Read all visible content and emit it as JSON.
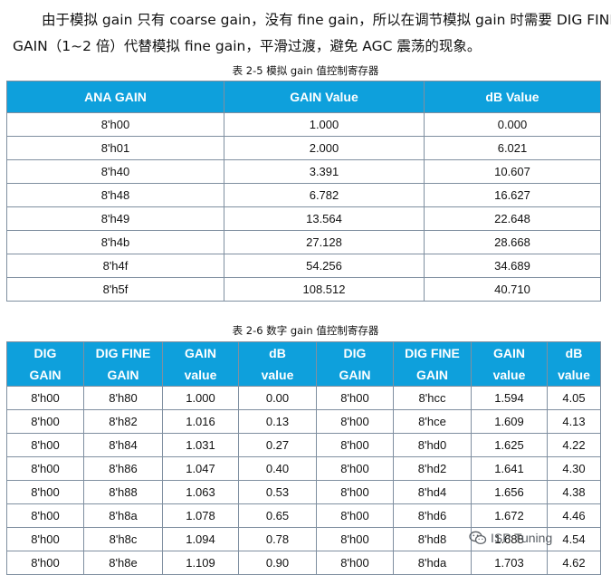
{
  "intro": {
    "line1": "由于模拟 gain 只有 coarse gain，没有 fine gain，所以在调节模拟 gain 时需要 DIG FINE",
    "line2": "GAIN（1~2 倍）代替模拟 fine gain，平滑过渡，避免 AGC 震荡的现象。"
  },
  "table1": {
    "caption": "表 2-5 模拟 gain 值控制寄存器",
    "headers": [
      "ANA GAIN",
      "GAIN Value",
      "dB Value"
    ],
    "rows": [
      [
        "8'h00",
        "1.000",
        "0.000"
      ],
      [
        "8'h01",
        "2.000",
        "6.021"
      ],
      [
        "8'h40",
        "3.391",
        "10.607"
      ],
      [
        "8'h48",
        "6.782",
        "16.627"
      ],
      [
        "8'h49",
        "13.564",
        "22.648"
      ],
      [
        "8'h4b",
        "27.128",
        "28.668"
      ],
      [
        "8'h4f",
        "54.256",
        "34.689"
      ],
      [
        "8'h5f",
        "108.512",
        "40.710"
      ]
    ]
  },
  "table2": {
    "caption": "表 2-6 数字 gain 值控制寄存器",
    "headers": [
      [
        "DIG",
        "GAIN"
      ],
      [
        "DIG FINE",
        "GAIN"
      ],
      [
        "GAIN",
        "value"
      ],
      [
        "dB",
        "value"
      ],
      [
        "DIG",
        "GAIN"
      ],
      [
        "DIG FINE",
        "GAIN"
      ],
      [
        "GAIN",
        "value"
      ],
      [
        "dB",
        "value"
      ]
    ],
    "rows": [
      [
        "8'h00",
        "8'h80",
        "1.000",
        "0.00",
        "8'h00",
        "8'hcc",
        "1.594",
        "4.05"
      ],
      [
        "8'h00",
        "8'h82",
        "1.016",
        "0.13",
        "8'h00",
        "8'hce",
        "1.609",
        "4.13"
      ],
      [
        "8'h00",
        "8'h84",
        "1.031",
        "0.27",
        "8'h00",
        "8'hd0",
        "1.625",
        "4.22"
      ],
      [
        "8'h00",
        "8'h86",
        "1.047",
        "0.40",
        "8'h00",
        "8'hd2",
        "1.641",
        "4.30"
      ],
      [
        "8'h00",
        "8'h88",
        "1.063",
        "0.53",
        "8'h00",
        "8'hd4",
        "1.656",
        "4.38"
      ],
      [
        "8'h00",
        "8'h8a",
        "1.078",
        "0.65",
        "8'h00",
        "8'hd6",
        "1.672",
        "4.46"
      ],
      [
        "8'h00",
        "8'h8c",
        "1.094",
        "0.78",
        "8'h00",
        "8'hd8",
        "1.688",
        "4.54"
      ],
      [
        "8'h00",
        "8'h8e",
        "1.109",
        "0.90",
        "8'h00",
        "8'hda",
        "1.703",
        "4.62"
      ]
    ]
  },
  "watermark": {
    "text": "ISP Tuning",
    "icon": "wechat-icon"
  },
  "colors": {
    "header_bg": "#0ea0dc",
    "header_text": "#ffffff",
    "border": "#7f8fa0"
  }
}
